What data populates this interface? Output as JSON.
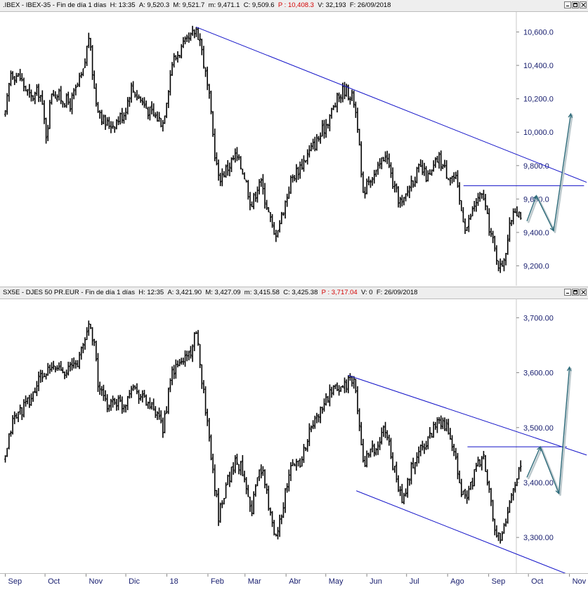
{
  "panels": [
    {
      "header": {
        "symbol": ".IBEX - IBEX-35 - Fin de día 1 días",
        "h": "H: 13:35",
        "a": "A: 9,520.3",
        "m": "M: 9,521.7",
        "mn": "m: 9,471.1",
        "c": "C: 9,509.6",
        "p": "P : 10,408.3",
        "v": "V: 32,193",
        "f": "F: 26/09/2018"
      },
      "y_ticks": [
        "9,200.0",
        "9,400.0",
        "9,600.0",
        "9,800.0",
        "10,000.0",
        "10,200.0",
        "10,400.0",
        "10,600.0"
      ]
    },
    {
      "header": {
        "symbol": "SX5E - DJES 50 PR.EUR - Fin de día 1 días",
        "h": "H: 12:35",
        "a": "A: 3,421.90",
        "m": "M: 3,427.09",
        "mn": "m: 3,415.58",
        "c": "C: 3,425.38",
        "p": "P : 3,717.04",
        "v": "V: 0",
        "f": "F: 26/09/2018"
      },
      "y_ticks": [
        "3,300.00",
        "3,400.00",
        "3,500.00",
        "3,600.00",
        "3,700.00"
      ]
    }
  ],
  "x_labels": [
    "Sep",
    "Oct",
    "Nov",
    "Dic",
    "18",
    "Feb",
    "Mar",
    "Abr",
    "May",
    "Jun",
    "Jul",
    "Ago",
    "Sep",
    "Oct",
    "Nov"
  ],
  "colors": {
    "bars": "#000000",
    "trend": "#1010c8",
    "projection": "#2e6b7a",
    "header_bg": "#eeeeee",
    "price_red": "#d40000"
  },
  "chart_data": [
    {
      "type": "ohlc",
      "title": ".IBEX - IBEX-35",
      "ylim": [
        9080,
        10720
      ],
      "series": [
        {
          "name": "IBEX-35",
          "anchors": [
            [
              "2017-09-01",
              10100
            ],
            [
              "2017-09-05",
              10360
            ],
            [
              "2017-09-12",
              10330
            ],
            [
              "2017-09-20",
              10200
            ],
            [
              "2017-09-27",
              10250
            ],
            [
              "2017-10-02",
              9980
            ],
            [
              "2017-10-06",
              10250
            ],
            [
              "2017-10-12",
              10210
            ],
            [
              "2017-10-20",
              10170
            ],
            [
              "2017-10-30",
              10360
            ],
            [
              "2017-11-03",
              10580
            ],
            [
              "2017-11-08",
              10200
            ],
            [
              "2017-11-15",
              10050
            ],
            [
              "2017-11-22",
              10050
            ],
            [
              "2017-11-30",
              10120
            ],
            [
              "2017-12-05",
              10270
            ],
            [
              "2017-12-12",
              10200
            ],
            [
              "2017-12-19",
              10120
            ],
            [
              "2017-12-29",
              10060
            ],
            [
              "2018-01-05",
              10420
            ],
            [
              "2018-01-12",
              10500
            ],
            [
              "2018-01-19",
              10560
            ],
            [
              "2018-01-23",
              10620
            ],
            [
              "2018-01-26",
              10560
            ],
            [
              "2018-02-02",
              10200
            ],
            [
              "2018-02-06",
              9890
            ],
            [
              "2018-02-09",
              9720
            ],
            [
              "2018-02-15",
              9780
            ],
            [
              "2018-02-22",
              9860
            ],
            [
              "2018-02-28",
              9760
            ],
            [
              "2018-03-06",
              9560
            ],
            [
              "2018-03-12",
              9720
            ],
            [
              "2018-03-16",
              9610
            ],
            [
              "2018-03-23",
              9380
            ],
            [
              "2018-03-28",
              9480
            ],
            [
              "2018-04-05",
              9720
            ],
            [
              "2018-04-12",
              9800
            ],
            [
              "2018-04-20",
              9900
            ],
            [
              "2018-04-27",
              9980
            ],
            [
              "2018-05-04",
              10100
            ],
            [
              "2018-05-10",
              10200
            ],
            [
              "2018-05-15",
              10260
            ],
            [
              "2018-05-22",
              10200
            ],
            [
              "2018-05-25",
              10050
            ],
            [
              "2018-05-29",
              9600
            ],
            [
              "2018-06-01",
              9720
            ],
            [
              "2018-06-08",
              9750
            ],
            [
              "2018-06-15",
              9880
            ],
            [
              "2018-06-22",
              9650
            ],
            [
              "2018-06-28",
              9560
            ],
            [
              "2018-07-04",
              9700
            ],
            [
              "2018-07-11",
              9780
            ],
            [
              "2018-07-18",
              9720
            ],
            [
              "2018-07-25",
              9850
            ],
            [
              "2018-07-31",
              9760
            ],
            [
              "2018-08-07",
              9720
            ],
            [
              "2018-08-10",
              9580
            ],
            [
              "2018-08-15",
              9420
            ],
            [
              "2018-08-22",
              9580
            ],
            [
              "2018-08-28",
              9620
            ],
            [
              "2018-08-31",
              9480
            ],
            [
              "2018-09-06",
              9280
            ],
            [
              "2018-09-10",
              9180
            ],
            [
              "2018-09-14",
              9300
            ],
            [
              "2018-09-20",
              9560
            ],
            [
              "2018-09-24",
              9520
            ],
            [
              "2018-09-26",
              9510
            ]
          ]
        }
      ],
      "annotations": {
        "trendlines": [
          [
            [
              "2018-01-23",
              10630
            ],
            [
              "2018-11-14",
              9700
            ]
          ]
        ],
        "hlines": [
          [
            [
              "2018-08-13",
              9680
            ],
            [
              "2018-11-12",
              9680
            ]
          ]
        ],
        "projection": [
          [
            "2018-09-30",
            9470
          ],
          [
            "2018-10-07",
            9620
          ],
          [
            "2018-10-20",
            9410
          ],
          [
            "2018-11-02",
            10110
          ]
        ]
      }
    },
    {
      "type": "ohlc",
      "title": "SX5E - DJES 50 PR.EUR",
      "ylim": [
        3235,
        3735
      ],
      "series": [
        {
          "name": "DJES 50 PR.EUR",
          "anchors": [
            [
              "2017-09-01",
              3440
            ],
            [
              "2017-09-06",
              3510
            ],
            [
              "2017-09-12",
              3530
            ],
            [
              "2017-09-20",
              3550
            ],
            [
              "2017-09-27",
              3590
            ],
            [
              "2017-10-02",
              3600
            ],
            [
              "2017-10-10",
              3610
            ],
            [
              "2017-10-18",
              3605
            ],
            [
              "2017-10-26",
              3620
            ],
            [
              "2017-10-31",
              3660
            ],
            [
              "2017-11-03",
              3690
            ],
            [
              "2017-11-07",
              3660
            ],
            [
              "2017-11-10",
              3580
            ],
            [
              "2017-11-16",
              3540
            ],
            [
              "2017-11-22",
              3550
            ],
            [
              "2017-11-30",
              3540
            ],
            [
              "2017-12-05",
              3580
            ],
            [
              "2017-12-12",
              3560
            ],
            [
              "2017-12-19",
              3540
            ],
            [
              "2017-12-29",
              3500
            ],
            [
              "2018-01-05",
              3600
            ],
            [
              "2018-01-12",
              3620
            ],
            [
              "2018-01-19",
              3640
            ],
            [
              "2018-01-23",
              3670
            ],
            [
              "2018-01-26",
              3620
            ],
            [
              "2018-02-02",
              3480
            ],
            [
              "2018-02-06",
              3400
            ],
            [
              "2018-02-09",
              3340
            ],
            [
              "2018-02-15",
              3400
            ],
            [
              "2018-02-22",
              3440
            ],
            [
              "2018-02-28",
              3420
            ],
            [
              "2018-03-06",
              3350
            ],
            [
              "2018-03-12",
              3430
            ],
            [
              "2018-03-16",
              3400
            ],
            [
              "2018-03-23",
              3300
            ],
            [
              "2018-03-28",
              3340
            ],
            [
              "2018-04-05",
              3430
            ],
            [
              "2018-04-12",
              3440
            ],
            [
              "2018-04-20",
              3500
            ],
            [
              "2018-04-27",
              3530
            ],
            [
              "2018-05-04",
              3560
            ],
            [
              "2018-05-10",
              3570
            ],
            [
              "2018-05-15",
              3580
            ],
            [
              "2018-05-22",
              3585
            ],
            [
              "2018-05-25",
              3540
            ],
            [
              "2018-05-29",
              3430
            ],
            [
              "2018-06-01",
              3450
            ],
            [
              "2018-06-08",
              3460
            ],
            [
              "2018-06-15",
              3500
            ],
            [
              "2018-06-22",
              3420
            ],
            [
              "2018-06-28",
              3360
            ],
            [
              "2018-07-04",
              3420
            ],
            [
              "2018-07-11",
              3460
            ],
            [
              "2018-07-18",
              3480
            ],
            [
              "2018-07-25",
              3520
            ],
            [
              "2018-07-31",
              3500
            ],
            [
              "2018-08-07",
              3440
            ],
            [
              "2018-08-10",
              3390
            ],
            [
              "2018-08-15",
              3370
            ],
            [
              "2018-08-22",
              3420
            ],
            [
              "2018-08-28",
              3450
            ],
            [
              "2018-08-31",
              3400
            ],
            [
              "2018-09-06",
              3310
            ],
            [
              "2018-09-10",
              3290
            ],
            [
              "2018-09-14",
              3330
            ],
            [
              "2018-09-20",
              3400
            ],
            [
              "2018-09-24",
              3420
            ],
            [
              "2018-09-26",
              3425
            ]
          ]
        }
      ],
      "annotations": {
        "trendlines": [
          [
            [
              "2018-05-18",
              3595
            ],
            [
              "2018-11-14",
              3450
            ]
          ],
          [
            [
              "2018-05-24",
              3385
            ],
            [
              "2018-11-08",
              3225
            ]
          ]
        ],
        "hlines": [
          [
            [
              "2018-08-16",
              3465
            ],
            [
              "2018-10-30",
              3465
            ]
          ]
        ],
        "projection": [
          [
            "2018-09-30",
            3410
          ],
          [
            "2018-10-10",
            3465
          ],
          [
            "2018-10-24",
            3380
          ],
          [
            "2018-11-01",
            3610
          ]
        ]
      }
    }
  ]
}
